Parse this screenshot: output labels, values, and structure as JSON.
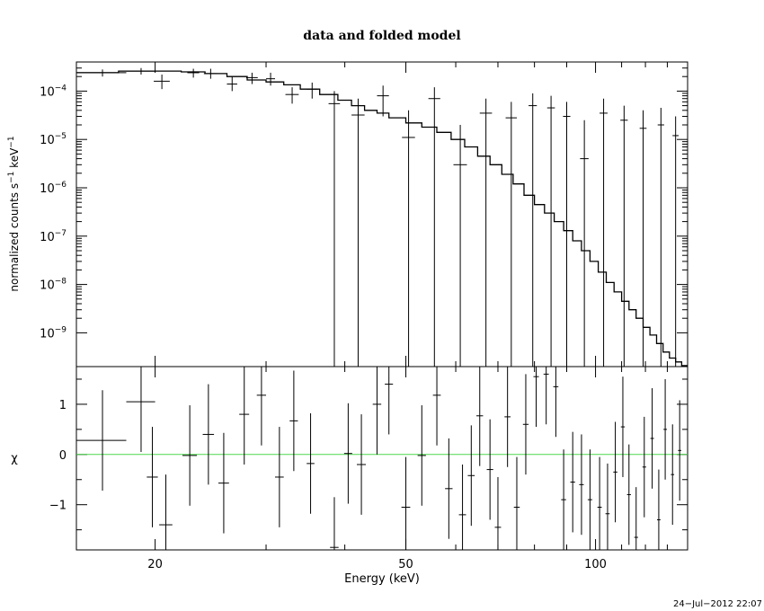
{
  "chart_data": [
    {
      "type": "line",
      "panel": "top",
      "title": "data and folded model",
      "ylabel_base": "normalized counts s",
      "ylabel_sup1": "−1",
      "ylabel_mid": " keV",
      "ylabel_sup2": "−1",
      "xscale": "log",
      "yscale": "log",
      "xlim": [
        15,
        140
      ],
      "ylim": [
        2e-10,
        0.0004
      ],
      "yticks": [
        {
          "base": "10",
          "exp": "−4",
          "v": 0.0001
        },
        {
          "base": "10",
          "exp": "−5",
          "v": 1e-05
        },
        {
          "base": "10",
          "exp": "−6",
          "v": 1e-06
        },
        {
          "base": "10",
          "exp": "−7",
          "v": 1e-07
        },
        {
          "base": "10",
          "exp": "−8",
          "v": 1e-08
        },
        {
          "base": "10",
          "exp": "−9",
          "v": 1e-09
        }
      ],
      "data_points": [
        {
          "x": 16.5,
          "dx": 1.5,
          "y": 0.00024,
          "yl": 0.0002,
          "yh": 0.00028
        },
        {
          "x": 19.0,
          "dx": 1.0,
          "y": 0.00026,
          "yl": 0.00022,
          "yh": 0.0003
        },
        {
          "x": 20.5,
          "dx": 0.6,
          "y": 0.00016,
          "yl": 0.00011,
          "yh": 0.00022
        },
        {
          "x": 23.0,
          "dx": 0.5,
          "y": 0.00024,
          "yl": 0.00019,
          "yh": 0.00029
        },
        {
          "x": 24.5,
          "dx": 0.6,
          "y": 0.00023,
          "yl": 0.00018,
          "yh": 0.00029
        },
        {
          "x": 26.5,
          "dx": 0.5,
          "y": 0.00014,
          "yl": 0.0001,
          "yh": 0.0002
        },
        {
          "x": 28.5,
          "dx": 0.6,
          "y": 0.00019,
          "yl": 0.00014,
          "yh": 0.00024
        },
        {
          "x": 30.5,
          "dx": 0.5,
          "y": 0.00018,
          "yl": 0.00013,
          "yh": 0.00024
        },
        {
          "x": 33.0,
          "dx": 0.8,
          "y": 8.5e-05,
          "yl": 5.5e-05,
          "yh": 0.00012
        },
        {
          "x": 35.5,
          "dx": 0.7,
          "y": 0.00011,
          "yl": 7e-05,
          "yh": 0.00015
        },
        {
          "x": 38.5,
          "dx": 0.8,
          "y": 5.5e-05,
          "yl": 2e-10,
          "yh": 0.0001
        },
        {
          "x": 42.0,
          "dx": 1.0,
          "y": 3.2e-05,
          "yl": 2e-10,
          "yh": 7e-05
        },
        {
          "x": 46.0,
          "dx": 1.0,
          "y": 8e-05,
          "yl": 3e-05,
          "yh": 0.00013
        },
        {
          "x": 50.5,
          "dx": 1.2,
          "y": 1.1e-05,
          "yl": 2e-10,
          "yh": 4e-05
        },
        {
          "x": 55.5,
          "dx": 1.2,
          "y": 7e-05,
          "yl": 2e-10,
          "yh": 0.00012
        },
        {
          "x": 61.0,
          "dx": 1.5,
          "y": 3e-06,
          "yl": 2e-10,
          "yh": 2e-05
        },
        {
          "x": 67.0,
          "dx": 1.5,
          "y": 3.5e-05,
          "yl": 2e-10,
          "yh": 7e-05
        },
        {
          "x": 73.5,
          "dx": 1.5,
          "y": 2.8e-05,
          "yl": 2e-10,
          "yh": 6e-05
        },
        {
          "x": 79.5,
          "dx": 1.2,
          "y": 5e-05,
          "yl": 2e-10,
          "yh": 9e-05
        },
        {
          "x": 85.0,
          "dx": 1.2,
          "y": 4.5e-05,
          "yl": 2e-10,
          "yh": 8e-05
        },
        {
          "x": 90.0,
          "dx": 1.2,
          "y": 3e-05,
          "yl": 2e-10,
          "yh": 6e-05
        },
        {
          "x": 96.0,
          "dx": 1.5,
          "y": 4e-06,
          "yl": 2e-10,
          "yh": 2.5e-05
        },
        {
          "x": 103.0,
          "dx": 1.5,
          "y": 3.5e-05,
          "yl": 2e-10,
          "yh": 7e-05
        },
        {
          "x": 111.0,
          "dx": 1.5,
          "y": 2.5e-05,
          "yl": 2e-10,
          "yh": 5e-05
        },
        {
          "x": 119.0,
          "dx": 1.5,
          "y": 1.7e-05,
          "yl": 2e-10,
          "yh": 4e-05
        },
        {
          "x": 127.0,
          "dx": 1.5,
          "y": 2e-05,
          "yl": 2e-10,
          "yh": 4.5e-05
        },
        {
          "x": 134.0,
          "dx": 1.5,
          "y": 1.2e-05,
          "yl": 2e-10,
          "yh": 3e-05
        }
      ],
      "model_steps": [
        [
          15.0,
          0.00024
        ],
        [
          17.5,
          0.00026
        ],
        [
          19.5,
          0.00026
        ],
        [
          22.0,
          0.00025
        ],
        [
          24.0,
          0.00023
        ],
        [
          26.0,
          0.0002
        ],
        [
          28.0,
          0.00017
        ],
        [
          30.0,
          0.000155
        ],
        [
          32.0,
          0.000135
        ],
        [
          34.0,
          0.00011
        ],
        [
          36.5,
          8.5e-05
        ],
        [
          39.0,
          6.5e-05
        ],
        [
          41.0,
          5e-05
        ],
        [
          43.0,
          4e-05
        ],
        [
          45.0,
          3.5e-05
        ],
        [
          47.0,
          2.8e-05
        ],
        [
          50.0,
          2.2e-05
        ],
        [
          53.0,
          1.8e-05
        ],
        [
          56.0,
          1.4e-05
        ],
        [
          59.0,
          1e-05
        ],
        [
          62.0,
          7e-06
        ],
        [
          65.0,
          4.5e-06
        ],
        [
          68.0,
          3e-06
        ],
        [
          71.0,
          1.9e-06
        ],
        [
          74.0,
          1.2e-06
        ],
        [
          77.0,
          7e-07
        ],
        [
          80.0,
          4.5e-07
        ],
        [
          83.0,
          3e-07
        ],
        [
          86.0,
          2e-07
        ],
        [
          89.0,
          1.3e-07
        ],
        [
          92.0,
          8e-08
        ],
        [
          95.0,
          5e-08
        ],
        [
          98.0,
          3e-08
        ],
        [
          101.0,
          1.8e-08
        ],
        [
          104.0,
          1.1e-08
        ],
        [
          107.0,
          7e-09
        ],
        [
          110.0,
          4.5e-09
        ],
        [
          113.0,
          3e-09
        ],
        [
          116.0,
          2e-09
        ],
        [
          119.0,
          1.3e-09
        ],
        [
          122.0,
          9e-10
        ],
        [
          125.0,
          6e-10
        ],
        [
          128.0,
          4e-10
        ],
        [
          131.0,
          3e-10
        ],
        [
          134.0,
          2.5e-10
        ],
        [
          137.0,
          2.1e-10
        ]
      ]
    },
    {
      "type": "scatter",
      "panel": "bottom",
      "xlabel": "Energy (keV)",
      "ylabel": "χ",
      "xscale": "log",
      "xlim": [
        15,
        140
      ],
      "ylim": [
        -1.9,
        1.75
      ],
      "xticks": [
        {
          "v": 20,
          "label": "20"
        },
        {
          "v": 50,
          "label": "50"
        },
        {
          "v": 100,
          "label": "100"
        }
      ],
      "yticks": [
        {
          "v": 1,
          "label": "1"
        },
        {
          "v": 0,
          "label": "0"
        },
        {
          "v": -1,
          "label": "−1"
        }
      ],
      "zero_line": 0,
      "zero_line_color": "#4cd94c",
      "residuals": [
        {
          "x": 16.5,
          "dx": 1.5,
          "y": 0.28,
          "e": 1.0
        },
        {
          "x": 19.0,
          "dx": 1.0,
          "y": 1.05,
          "e": 1.0
        },
        {
          "x": 19.8,
          "dx": 0.4,
          "y": -0.45,
          "e": 1.0
        },
        {
          "x": 20.8,
          "dx": 0.5,
          "y": -1.4,
          "e": 1.0
        },
        {
          "x": 22.7,
          "dx": 0.6,
          "y": -0.02,
          "e": 1.0
        },
        {
          "x": 24.3,
          "dx": 0.5,
          "y": 0.4,
          "e": 1.0
        },
        {
          "x": 25.7,
          "dx": 0.5,
          "y": -0.57,
          "e": 1.0
        },
        {
          "x": 27.7,
          "dx": 0.5,
          "y": 0.8,
          "e": 1.0
        },
        {
          "x": 29.5,
          "dx": 0.5,
          "y": 1.18,
          "e": 1.0
        },
        {
          "x": 31.5,
          "dx": 0.5,
          "y": -0.45,
          "e": 1.0
        },
        {
          "x": 33.2,
          "dx": 0.5,
          "y": 0.67,
          "e": 1.0
        },
        {
          "x": 35.3,
          "dx": 0.5,
          "y": -0.18,
          "e": 1.0
        },
        {
          "x": 38.5,
          "dx": 0.6,
          "y": -1.85,
          "e": 1.0
        },
        {
          "x": 40.5,
          "dx": 0.6,
          "y": 0.02,
          "e": 1.0
        },
        {
          "x": 42.5,
          "dx": 0.7,
          "y": -0.2,
          "e": 1.0
        },
        {
          "x": 45.0,
          "dx": 0.7,
          "y": 1.0,
          "e": 1.0
        },
        {
          "x": 47.0,
          "dx": 0.7,
          "y": 1.4,
          "e": 1.0
        },
        {
          "x": 50.0,
          "dx": 0.8,
          "y": -1.05,
          "e": 1.0
        },
        {
          "x": 53.0,
          "dx": 0.8,
          "y": -0.02,
          "e": 1.0
        },
        {
          "x": 56.0,
          "dx": 0.8,
          "y": 1.18,
          "e": 1.0
        },
        {
          "x": 58.5,
          "dx": 0.8,
          "y": -0.68,
          "e": 1.0
        },
        {
          "x": 61.5,
          "dx": 0.8,
          "y": -1.2,
          "e": 1.0
        },
        {
          "x": 63.5,
          "dx": 0.8,
          "y": -0.42,
          "e": 1.0
        },
        {
          "x": 65.5,
          "dx": 0.8,
          "y": 0.77,
          "e": 1.0
        },
        {
          "x": 68.0,
          "dx": 0.8,
          "y": -0.3,
          "e": 1.0
        },
        {
          "x": 70.0,
          "dx": 0.8,
          "y": -1.45,
          "e": 1.0
        },
        {
          "x": 72.5,
          "dx": 0.8,
          "y": 0.75,
          "e": 1.0
        },
        {
          "x": 75.0,
          "dx": 0.8,
          "y": -1.05,
          "e": 1.0
        },
        {
          "x": 77.5,
          "dx": 0.8,
          "y": 0.6,
          "e": 1.0
        },
        {
          "x": 80.5,
          "dx": 0.8,
          "y": 1.55,
          "e": 1.0
        },
        {
          "x": 83.5,
          "dx": 0.8,
          "y": 1.6,
          "e": 1.0
        },
        {
          "x": 86.5,
          "dx": 0.8,
          "y": 1.35,
          "e": 1.0
        },
        {
          "x": 89.0,
          "dx": 0.8,
          "y": -0.9,
          "e": 1.0
        },
        {
          "x": 92.0,
          "dx": 0.8,
          "y": -0.55,
          "e": 1.0
        },
        {
          "x": 95.0,
          "dx": 0.8,
          "y": -0.6,
          "e": 1.0
        },
        {
          "x": 98.0,
          "dx": 0.8,
          "y": -0.9,
          "e": 1.0
        },
        {
          "x": 101.5,
          "dx": 0.8,
          "y": -1.05,
          "e": 1.0
        },
        {
          "x": 104.5,
          "dx": 0.8,
          "y": -1.18,
          "e": 1.0
        },
        {
          "x": 107.5,
          "dx": 0.8,
          "y": -0.35,
          "e": 1.0
        },
        {
          "x": 110.5,
          "dx": 0.8,
          "y": 0.55,
          "e": 1.0
        },
        {
          "x": 113.0,
          "dx": 0.8,
          "y": -0.8,
          "e": 1.0
        },
        {
          "x": 116.0,
          "dx": 0.8,
          "y": -1.65,
          "e": 1.0
        },
        {
          "x": 119.5,
          "dx": 0.8,
          "y": -0.25,
          "e": 1.0
        },
        {
          "x": 123.0,
          "dx": 0.8,
          "y": 0.32,
          "e": 1.0
        },
        {
          "x": 126.0,
          "dx": 0.8,
          "y": -1.3,
          "e": 1.0
        },
        {
          "x": 129.0,
          "dx": 0.8,
          "y": 0.5,
          "e": 1.0
        },
        {
          "x": 132.5,
          "dx": 0.8,
          "y": -0.4,
          "e": 1.0
        },
        {
          "x": 136.0,
          "dx": 0.8,
          "y": 0.08,
          "e": 1.0
        }
      ]
    }
  ],
  "footer": {
    "timestamp": "24−Jul−2012 22:07"
  }
}
